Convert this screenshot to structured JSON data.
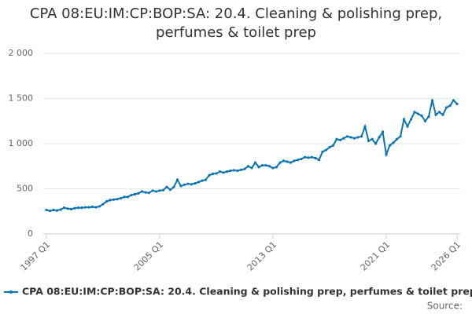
{
  "chart_data": {
    "type": "line",
    "title": "CPA 08:EU:IM:CP:BOP:SA: 20.4. Cleaning & polishing prep, perfumes & toilet prep",
    "categories": [
      "1997 Q1",
      null,
      null,
      null,
      null,
      null,
      null,
      null,
      null,
      null,
      null,
      null,
      null,
      null,
      null,
      null,
      null,
      null,
      null,
      null,
      null,
      null,
      null,
      null,
      null,
      null,
      null,
      null,
      null,
      null,
      null,
      null,
      "2005 Q1",
      null,
      null,
      null,
      null,
      null,
      null,
      null,
      null,
      null,
      null,
      null,
      null,
      null,
      null,
      null,
      null,
      null,
      null,
      null,
      null,
      null,
      null,
      null,
      null,
      null,
      null,
      null,
      null,
      null,
      null,
      null,
      "2013 Q1",
      null,
      null,
      null,
      null,
      null,
      null,
      null,
      null,
      null,
      null,
      null,
      null,
      null,
      null,
      null,
      null,
      null,
      null,
      null,
      null,
      null,
      null,
      null,
      null,
      null,
      null,
      null,
      null,
      null,
      null,
      null,
      "2021 Q1",
      null,
      null,
      null,
      null,
      null,
      null,
      null,
      null,
      null,
      null,
      null,
      null,
      null,
      null,
      null,
      null,
      null,
      null,
      null,
      "2026 Q1"
    ],
    "series": [
      {
        "name": "CPA 08:EU:IM:CP:BOP:SA: 20.4. Cleaning & polishing prep, perfumes & toilet prep",
        "color": "#0b74b5",
        "values": [
          265,
          255,
          265,
          260,
          270,
          290,
          280,
          275,
          285,
          290,
          290,
          295,
          295,
          300,
          295,
          305,
          330,
          360,
          375,
          380,
          385,
          395,
          410,
          410,
          430,
          440,
          450,
          470,
          460,
          455,
          480,
          470,
          480,
          485,
          520,
          490,
          520,
          600,
          530,
          545,
          555,
          550,
          560,
          575,
          590,
          600,
          650,
          665,
          670,
          690,
          680,
          690,
          700,
          705,
          700,
          710,
          720,
          750,
          730,
          790,
          740,
          760,
          760,
          750,
          730,
          740,
          790,
          810,
          800,
          790,
          810,
          820,
          830,
          850,
          845,
          850,
          840,
          820,
          910,
          930,
          960,
          980,
          1050,
          1040,
          1060,
          1080,
          1070,
          1060,
          1070,
          1080,
          1190,
          1030,
          1050,
          1000,
          1070,
          1130,
          880,
          980,
          1010,
          1050,
          1080,
          1270,
          1190,
          1270,
          1350,
          1330,
          1310,
          1250,
          1300,
          1480,
          1320,
          1350,
          1320,
          1400,
          1420,
          1480,
          1440
        ]
      }
    ],
    "ylim": [
      0,
      2000
    ],
    "yticks": [
      0,
      {
        "value": 500,
        "label": "500"
      },
      {
        "value": 1000,
        "label": "1 000"
      },
      {
        "value": 1500,
        "label": "1 500"
      },
      {
        "value": 2000,
        "label": "2 000"
      }
    ],
    "grid": true,
    "source": "Source:"
  }
}
